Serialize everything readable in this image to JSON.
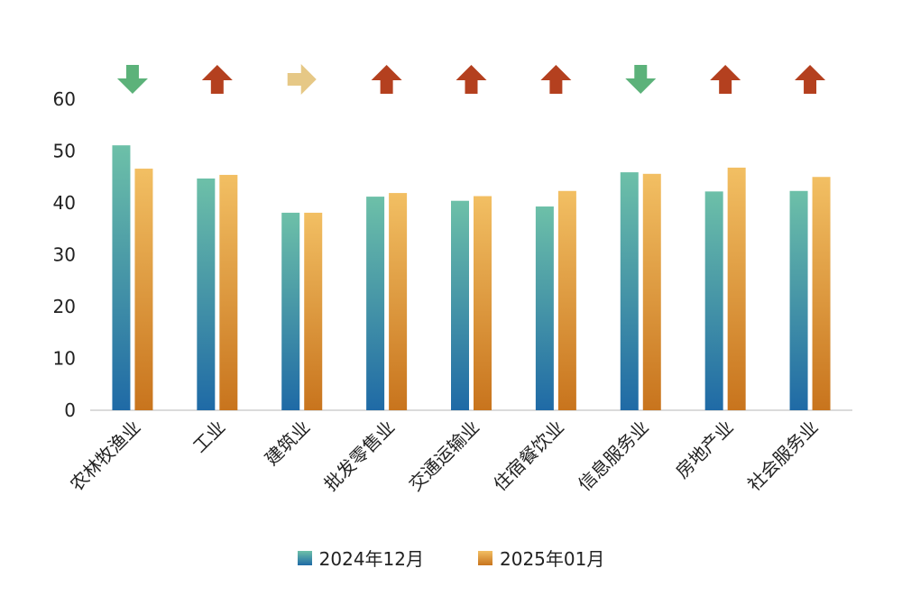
{
  "chart_data": {
    "type": "bar",
    "categories": [
      "农林牧渔业",
      "工业",
      "建筑业",
      "批发零售业",
      "交通运输业",
      "住宿餐饮业",
      "信息服务业",
      "房地产业",
      "社会服务业"
    ],
    "series": [
      {
        "name": "2024年12月",
        "values": [
          51.1,
          44.7,
          38.1,
          41.2,
          40.4,
          39.3,
          45.9,
          42.2,
          42.3
        ]
      },
      {
        "name": "2025年01月",
        "values": [
          46.6,
          45.4,
          38.1,
          41.9,
          41.3,
          42.3,
          45.6,
          46.8,
          45.0
        ]
      }
    ],
    "trend": [
      "down",
      "up",
      "flat",
      "up",
      "up",
      "up",
      "down",
      "up",
      "up"
    ],
    "yticks": [
      "0",
      "10",
      "20",
      "30",
      "40",
      "50",
      "60"
    ],
    "ylim": [
      0,
      60
    ],
    "legend_position": "bottom",
    "colors": {
      "series1_top": "#6dc0a8",
      "series1_bottom": "#1f6aa6",
      "series2_top": "#f2bf63",
      "series2_bottom": "#c8741d",
      "up": "#b4401f",
      "down": "#5cb27a",
      "flat": "#e6c886"
    }
  }
}
